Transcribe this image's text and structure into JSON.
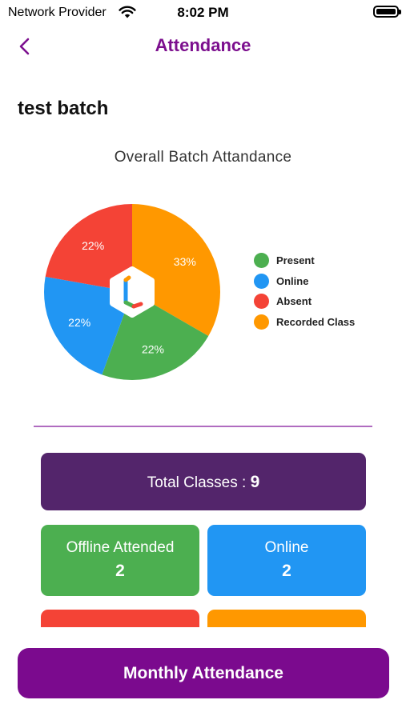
{
  "status_bar": {
    "carrier": "Network Provider",
    "time": "8:02 PM"
  },
  "nav": {
    "title": "Attendance",
    "back_icon": "chevron-left-icon"
  },
  "batch_name": "test batch",
  "colors": {
    "present": "#4caf50",
    "online": "#2196f3",
    "absent": "#f44336",
    "recorded": "#ff9800",
    "total": "#53256b",
    "brand": "#7b0a8e"
  },
  "chart_data": {
    "type": "pie",
    "title": "Overall Batch Attandance",
    "slices": [
      {
        "label": "Recorded Class",
        "value": 33,
        "display": "33%",
        "color": "#ff9800"
      },
      {
        "label": "Present",
        "value": 22,
        "display": "22%",
        "color": "#4caf50"
      },
      {
        "label": "Online",
        "value": 22,
        "display": "22%",
        "color": "#2196f3"
      },
      {
        "label": "Absent",
        "value": 22,
        "display": "22%",
        "color": "#f44336"
      }
    ],
    "legend": [
      {
        "label": "Present",
        "color": "#4caf50"
      },
      {
        "label": "Online",
        "color": "#2196f3"
      },
      {
        "label": "Absent",
        "color": "#f44336"
      },
      {
        "label": "Recorded Class",
        "color": "#ff9800"
      }
    ],
    "legend_position": "right",
    "center_icon": "app-logo-icon"
  },
  "summary": {
    "total_label": "Total Classes : ",
    "total_value": "9",
    "offline_label": "Offline Attended",
    "offline_value": "2",
    "online_label": "Online",
    "online_value": "2"
  },
  "monthly_button": "Monthly Attendance"
}
